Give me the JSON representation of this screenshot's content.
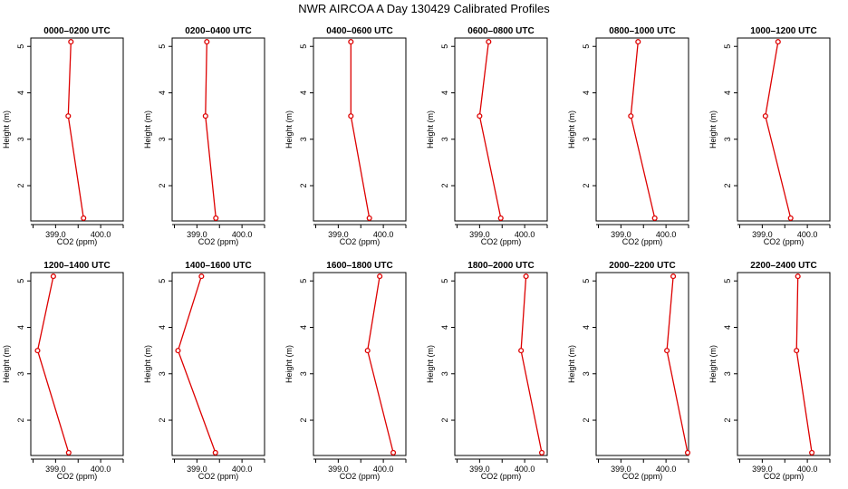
{
  "page": {
    "title": "NWR AIRCOA A  Day 130429  Calibrated Profiles"
  },
  "colors": {
    "series": "#dd0000",
    "axis": "#000000"
  },
  "chart_data": [
    {
      "type": "line",
      "title": "0000–0200 UTC",
      "xlabel": "CO2 (ppm)",
      "ylabel": "Height (m)",
      "xlim": [
        398.45,
        400.5
      ],
      "ylim": [
        1.24,
        5.18
      ],
      "xticks": [
        "399.0",
        "400.0"
      ],
      "yticks": [
        "2",
        "3",
        "4",
        "5"
      ],
      "x": [
        399.34,
        399.28,
        399.62
      ],
      "y": [
        5.1,
        3.5,
        1.3
      ]
    },
    {
      "type": "line",
      "title": "0200–0400 UTC",
      "xlabel": "CO2 (ppm)",
      "ylabel": "Height (m)",
      "xlim": [
        398.45,
        400.5
      ],
      "ylim": [
        1.24,
        5.18
      ],
      "xticks": [
        "399.0",
        "400.0"
      ],
      "yticks": [
        "2",
        "3",
        "4",
        "5"
      ],
      "x": [
        399.22,
        399.19,
        399.42
      ],
      "y": [
        5.1,
        3.5,
        1.3
      ]
    },
    {
      "type": "line",
      "title": "0400–0600 UTC",
      "xlabel": "CO2 (ppm)",
      "ylabel": "Height (m)",
      "xlim": [
        398.45,
        400.5
      ],
      "ylim": [
        1.24,
        5.18
      ],
      "xticks": [
        "399.0",
        "400.0"
      ],
      "yticks": [
        "2",
        "3",
        "4",
        "5"
      ],
      "x": [
        399.28,
        399.28,
        399.69
      ],
      "y": [
        5.1,
        3.5,
        1.3
      ]
    },
    {
      "type": "line",
      "title": "0600–0800 UTC",
      "xlabel": "CO2 (ppm)",
      "ylabel": "Height (m)",
      "xlim": [
        398.45,
        400.5
      ],
      "ylim": [
        1.24,
        5.18
      ],
      "xticks": [
        "399.0",
        "400.0"
      ],
      "yticks": [
        "2",
        "3",
        "4",
        "5"
      ],
      "x": [
        399.2,
        399.0,
        399.47
      ],
      "y": [
        5.1,
        3.5,
        1.3
      ]
    },
    {
      "type": "line",
      "title": "0800–1000 UTC",
      "xlabel": "CO2 (ppm)",
      "ylabel": "Height (m)",
      "xlim": [
        398.45,
        400.5
      ],
      "ylim": [
        1.24,
        5.18
      ],
      "xticks": [
        "399.0",
        "400.0"
      ],
      "yticks": [
        "2",
        "3",
        "4",
        "5"
      ],
      "x": [
        399.38,
        399.22,
        399.75
      ],
      "y": [
        5.1,
        3.5,
        1.3
      ]
    },
    {
      "type": "line",
      "title": "1000–1200 UTC",
      "xlabel": "CO2 (ppm)",
      "ylabel": "Height (m)",
      "xlim": [
        398.45,
        400.5
      ],
      "ylim": [
        1.24,
        5.18
      ],
      "xticks": [
        "399.0",
        "400.0"
      ],
      "yticks": [
        "2",
        "3",
        "4",
        "5"
      ],
      "x": [
        399.35,
        399.07,
        399.63
      ],
      "y": [
        5.1,
        3.5,
        1.3
      ]
    },
    {
      "type": "line",
      "title": "1200–1400 UTC",
      "xlabel": "CO2 (ppm)",
      "ylabel": "Height (m)",
      "xlim": [
        398.45,
        400.5
      ],
      "ylim": [
        1.24,
        5.18
      ],
      "xticks": [
        "399.0",
        "400.0"
      ],
      "yticks": [
        "2",
        "3",
        "4",
        "5"
      ],
      "x": [
        398.95,
        398.6,
        399.29
      ],
      "y": [
        5.1,
        3.5,
        1.3
      ]
    },
    {
      "type": "line",
      "title": "1400–1600 UTC",
      "xlabel": "CO2 (ppm)",
      "ylabel": "Height (m)",
      "xlim": [
        398.45,
        400.5
      ],
      "ylim": [
        1.24,
        5.18
      ],
      "xticks": [
        "399.0",
        "400.0"
      ],
      "yticks": [
        "2",
        "3",
        "4",
        "5"
      ],
      "x": [
        399.1,
        398.58,
        399.41
      ],
      "y": [
        5.1,
        3.5,
        1.3
      ]
    },
    {
      "type": "line",
      "title": "1600–1800 UTC",
      "xlabel": "CO2 (ppm)",
      "ylabel": "Height (m)",
      "xlim": [
        398.45,
        400.5
      ],
      "ylim": [
        1.24,
        5.18
      ],
      "xticks": [
        "399.0",
        "400.0"
      ],
      "yticks": [
        "2",
        "3",
        "4",
        "5"
      ],
      "x": [
        399.92,
        399.65,
        400.22
      ],
      "y": [
        5.1,
        3.5,
        1.3
      ]
    },
    {
      "type": "line",
      "title": "1800–2000 UTC",
      "xlabel": "CO2 (ppm)",
      "ylabel": "Height (m)",
      "xlim": [
        398.45,
        400.5
      ],
      "ylim": [
        1.24,
        5.18
      ],
      "xticks": [
        "399.0",
        "400.0"
      ],
      "yticks": [
        "2",
        "3",
        "4",
        "5"
      ],
      "x": [
        400.03,
        399.92,
        400.38
      ],
      "y": [
        5.1,
        3.5,
        1.3
      ]
    },
    {
      "type": "line",
      "title": "2000–2200 UTC",
      "xlabel": "CO2 (ppm)",
      "ylabel": "Height (m)",
      "xlim": [
        398.45,
        400.5
      ],
      "ylim": [
        1.24,
        5.18
      ],
      "xticks": [
        "399.0",
        "400.0"
      ],
      "yticks": [
        "2",
        "3",
        "4",
        "5"
      ],
      "x": [
        400.16,
        400.02,
        400.48
      ],
      "y": [
        5.1,
        3.5,
        1.3
      ]
    },
    {
      "type": "line",
      "title": "2200–2400 UTC",
      "xlabel": "CO2 (ppm)",
      "ylabel": "Height (m)",
      "xlim": [
        398.45,
        400.5
      ],
      "ylim": [
        1.24,
        5.18
      ],
      "xticks": [
        "399.0",
        "400.0"
      ],
      "yticks": [
        "2",
        "3",
        "4",
        "5"
      ],
      "x": [
        399.79,
        399.76,
        400.1
      ],
      "y": [
        5.1,
        3.5,
        1.3
      ]
    }
  ]
}
